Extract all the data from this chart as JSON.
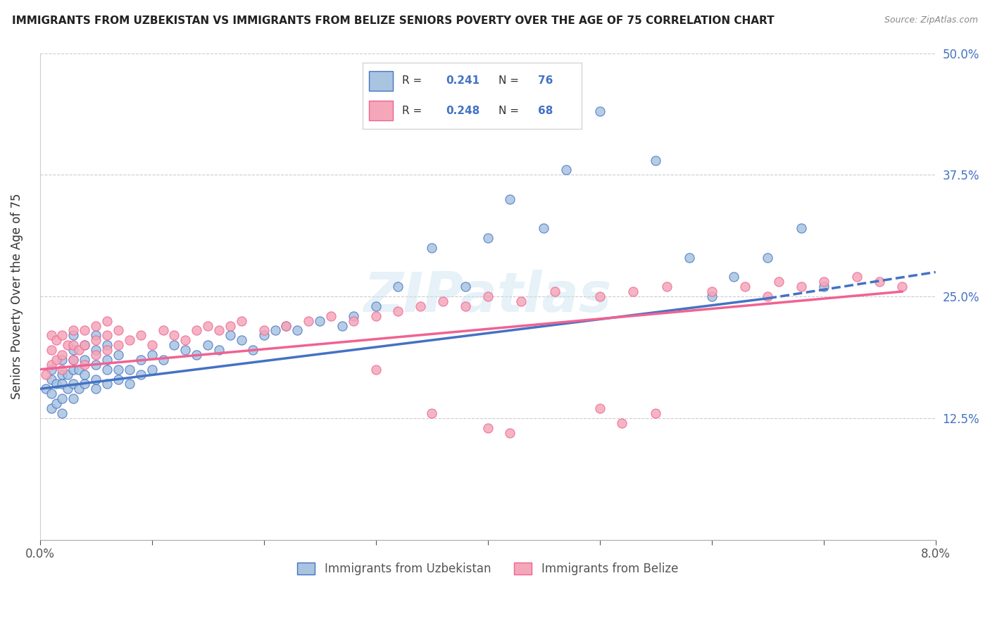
{
  "title": "IMMIGRANTS FROM UZBEKISTAN VS IMMIGRANTS FROM BELIZE SENIORS POVERTY OVER THE AGE OF 75 CORRELATION CHART",
  "source": "Source: ZipAtlas.com",
  "ylabel": "Seniors Poverty Over the Age of 75",
  "xlim": [
    0.0,
    0.08
  ],
  "ylim": [
    0.0,
    0.5
  ],
  "xticks": [
    0.0,
    0.01,
    0.02,
    0.03,
    0.04,
    0.05,
    0.06,
    0.07,
    0.08
  ],
  "xticklabels": [
    "0.0%",
    "",
    "",
    "",
    "",
    "",
    "",
    "",
    "8.0%"
  ],
  "yticks": [
    0.0,
    0.125,
    0.25,
    0.375,
    0.5
  ],
  "yticklabels": [
    "",
    "12.5%",
    "25.0%",
    "37.5%",
    "50.0%"
  ],
  "legend_bottom_label1": "Immigrants from Uzbekistan",
  "legend_bottom_label2": "Immigrants from Belize",
  "R_uzbekistan": 0.241,
  "N_uzbekistan": 76,
  "R_belize": 0.248,
  "N_belize": 68,
  "color_uzbekistan": "#a8c4e0",
  "color_belize": "#f4a7b9",
  "line_color_uzbekistan": "#4472c4",
  "line_color_belize": "#f06292",
  "watermark": "ZIPatlas",
  "uzbekistan_x": [
    0.0005,
    0.001,
    0.001,
    0.001,
    0.001,
    0.0015,
    0.0015,
    0.002,
    0.002,
    0.002,
    0.002,
    0.002,
    0.0025,
    0.0025,
    0.003,
    0.003,
    0.003,
    0.003,
    0.003,
    0.003,
    0.0035,
    0.0035,
    0.004,
    0.004,
    0.004,
    0.004,
    0.005,
    0.005,
    0.005,
    0.005,
    0.005,
    0.006,
    0.006,
    0.006,
    0.006,
    0.007,
    0.007,
    0.007,
    0.008,
    0.008,
    0.009,
    0.009,
    0.01,
    0.01,
    0.011,
    0.012,
    0.013,
    0.014,
    0.015,
    0.016,
    0.017,
    0.018,
    0.019,
    0.02,
    0.021,
    0.022,
    0.023,
    0.025,
    0.027,
    0.028,
    0.03,
    0.032,
    0.035,
    0.038,
    0.04,
    0.042,
    0.045,
    0.047,
    0.05,
    0.055,
    0.058,
    0.06,
    0.062,
    0.065,
    0.068,
    0.07
  ],
  "uzbekistan_y": [
    0.155,
    0.135,
    0.15,
    0.165,
    0.175,
    0.14,
    0.16,
    0.145,
    0.16,
    0.17,
    0.13,
    0.185,
    0.155,
    0.17,
    0.145,
    0.16,
    0.175,
    0.185,
    0.195,
    0.21,
    0.155,
    0.175,
    0.16,
    0.17,
    0.185,
    0.2,
    0.155,
    0.165,
    0.18,
    0.195,
    0.21,
    0.16,
    0.175,
    0.185,
    0.2,
    0.165,
    0.175,
    0.19,
    0.16,
    0.175,
    0.17,
    0.185,
    0.175,
    0.19,
    0.185,
    0.2,
    0.195,
    0.19,
    0.2,
    0.195,
    0.21,
    0.205,
    0.195,
    0.21,
    0.215,
    0.22,
    0.215,
    0.225,
    0.22,
    0.23,
    0.24,
    0.26,
    0.3,
    0.26,
    0.31,
    0.35,
    0.32,
    0.38,
    0.44,
    0.39,
    0.29,
    0.25,
    0.27,
    0.29,
    0.32,
    0.26
  ],
  "belize_x": [
    0.0005,
    0.001,
    0.001,
    0.001,
    0.0015,
    0.0015,
    0.002,
    0.002,
    0.002,
    0.0025,
    0.003,
    0.003,
    0.003,
    0.0035,
    0.004,
    0.004,
    0.004,
    0.005,
    0.005,
    0.005,
    0.006,
    0.006,
    0.006,
    0.007,
    0.007,
    0.008,
    0.009,
    0.01,
    0.011,
    0.012,
    0.013,
    0.014,
    0.015,
    0.016,
    0.017,
    0.018,
    0.02,
    0.022,
    0.024,
    0.026,
    0.028,
    0.03,
    0.032,
    0.034,
    0.036,
    0.038,
    0.04,
    0.043,
    0.046,
    0.05,
    0.053,
    0.056,
    0.06,
    0.063,
    0.066,
    0.068,
    0.07,
    0.073,
    0.075,
    0.077,
    0.05,
    0.052,
    0.055,
    0.04,
    0.042,
    0.065,
    0.03,
    0.035
  ],
  "belize_y": [
    0.17,
    0.18,
    0.195,
    0.21,
    0.185,
    0.205,
    0.175,
    0.19,
    0.21,
    0.2,
    0.185,
    0.2,
    0.215,
    0.195,
    0.18,
    0.2,
    0.215,
    0.19,
    0.205,
    0.22,
    0.195,
    0.21,
    0.225,
    0.2,
    0.215,
    0.205,
    0.21,
    0.2,
    0.215,
    0.21,
    0.205,
    0.215,
    0.22,
    0.215,
    0.22,
    0.225,
    0.215,
    0.22,
    0.225,
    0.23,
    0.225,
    0.23,
    0.235,
    0.24,
    0.245,
    0.24,
    0.25,
    0.245,
    0.255,
    0.25,
    0.255,
    0.26,
    0.255,
    0.26,
    0.265,
    0.26,
    0.265,
    0.27,
    0.265,
    0.26,
    0.135,
    0.12,
    0.13,
    0.115,
    0.11,
    0.25,
    0.175,
    0.13
  ],
  "trend_uzb_x0": 0.0,
  "trend_uzb_x1": 0.065,
  "trend_uzb_x2": 0.08,
  "trend_uzb_y0": 0.155,
  "trend_uzb_y1": 0.248,
  "trend_uzb_y2": 0.275,
  "trend_belize_x0": 0.0,
  "trend_belize_x1": 0.077,
  "trend_belize_y0": 0.175,
  "trend_belize_y1": 0.255
}
